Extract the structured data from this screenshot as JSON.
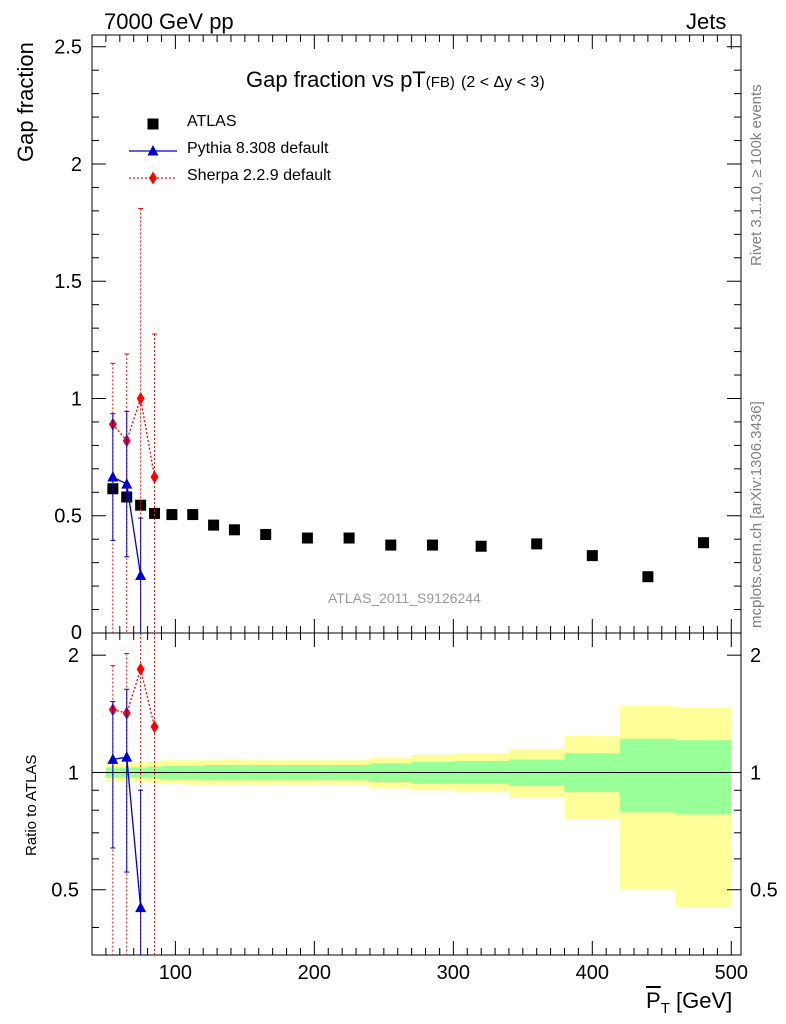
{
  "header": {
    "left": "7000 GeV pp",
    "right": "Jets"
  },
  "side_labels": {
    "rivet": "Rivet 3.1.10, ≥ 100k events",
    "mcplots": "mcplots.cern.ch [arXiv:1306.3436]"
  },
  "chart_data": [
    {
      "type": "scatter",
      "title": "Gap fraction vs pT(FB) (2 < Δy < 3)",
      "title_main": "Gap fraction vs pT",
      "title_sub": "(FB)",
      "title_tail": "(2 < Δy < 3)",
      "watermark": "ATLAS_2011_S9126244",
      "ylabel": "Gap fraction",
      "xlim": [
        40,
        507
      ],
      "ylim": [
        0,
        2.55
      ],
      "yticks": [
        0.5,
        1,
        1.5,
        2,
        2.5
      ],
      "yticklabels": [
        "0.5",
        "1",
        "1.5",
        "2",
        "2.5"
      ],
      "y_zero_label": "0",
      "legend_placement": "top-left",
      "series": [
        {
          "name": "ATLAS",
          "marker": "square",
          "color": "#000000",
          "x": [
            55,
            65,
            75,
            85,
            97.5,
            112.5,
            127.5,
            142.5,
            165,
            195,
            225,
            255,
            285,
            320,
            360,
            400,
            440,
            480
          ],
          "y": [
            0.615,
            0.58,
            0.545,
            0.51,
            0.505,
            0.505,
            0.46,
            0.44,
            0.42,
            0.405,
            0.405,
            0.375,
            0.375,
            0.37,
            0.38,
            0.33,
            0.24,
            0.385
          ]
        },
        {
          "name": "Pythia 8.308 default",
          "marker": "triangle",
          "line": "solid",
          "color": "#0000cc",
          "x": [
            55,
            65,
            75
          ],
          "y": [
            0.665,
            0.635,
            0.245
          ],
          "yerr_low": [
            0.27,
            0.31,
            0.245
          ],
          "yerr_high": [
            0.27,
            0.31,
            0.245
          ]
        },
        {
          "name": "Sherpa 2.2.9 default",
          "marker": "diamond",
          "line": "dotted",
          "color": "#ff0000",
          "x": [
            55,
            65,
            75,
            85
          ],
          "y": [
            0.89,
            0.82,
            1.0,
            0.665
          ],
          "yerr_low": [
            0.89,
            0.82,
            1.0,
            0.665
          ],
          "yerr_high": [
            0.26,
            0.37,
            0.81,
            0.61
          ]
        }
      ]
    },
    {
      "type": "scatter",
      "ylabel": "Ratio to ATLAS",
      "xlabel": "P_T [GeV]",
      "xlabel_main": "P",
      "xlabel_sub": "T",
      "xlabel_unit": "[GeV]",
      "xlim": [
        40,
        507
      ],
      "ylim": [
        0.34,
        2.28
      ],
      "xticks": [
        100,
        200,
        300,
        400,
        500
      ],
      "xticklabels": [
        "100",
        "200",
        "300",
        "400",
        "500"
      ],
      "yticks": [
        0.5,
        1,
        2
      ],
      "yticklabels": [
        "0.5",
        "1",
        "2"
      ],
      "bands": {
        "bin_edges": [
          50,
          60,
          70,
          80,
          90,
          105,
          120,
          135,
          150,
          180,
          210,
          240,
          270,
          300,
          340,
          380,
          420,
          460,
          500
        ],
        "green_low": [
          0.97,
          0.97,
          0.97,
          0.965,
          0.96,
          0.96,
          0.955,
          0.955,
          0.955,
          0.955,
          0.955,
          0.945,
          0.935,
          0.935,
          0.925,
          0.89,
          0.79,
          0.78
        ],
        "green_high": [
          1.03,
          1.03,
          1.03,
          1.035,
          1.04,
          1.04,
          1.045,
          1.045,
          1.045,
          1.045,
          1.045,
          1.055,
          1.065,
          1.07,
          1.08,
          1.12,
          1.22,
          1.21
        ],
        "yellow_low": [
          0.95,
          0.95,
          0.95,
          0.94,
          0.935,
          0.93,
          0.93,
          0.93,
          0.93,
          0.93,
          0.93,
          0.91,
          0.9,
          0.89,
          0.86,
          0.76,
          0.5,
          0.45
        ],
        "yellow_high": [
          1.06,
          1.06,
          1.06,
          1.07,
          1.075,
          1.075,
          1.075,
          1.08,
          1.075,
          1.075,
          1.075,
          1.09,
          1.11,
          1.12,
          1.15,
          1.24,
          1.48,
          1.47
        ],
        "green_color": "#99ff99",
        "yellow_color": "#ffff99"
      },
      "series": [
        {
          "name": "Pythia 8.308 default",
          "marker": "triangle",
          "line": "solid",
          "color": "#0000cc",
          "x": [
            55,
            65,
            75
          ],
          "y": [
            1.08,
            1.095,
            0.45
          ],
          "yerr_low": [
            0.44,
            0.54,
            0.45
          ],
          "yerr_high": [
            0.44,
            0.54,
            0.45
          ]
        },
        {
          "name": "Sherpa 2.2.9 default",
          "marker": "diamond",
          "line": "dotted",
          "color": "#ff0000",
          "x": [
            55,
            65,
            75,
            85
          ],
          "y": [
            1.45,
            1.42,
            1.84,
            1.31
          ],
          "yerr_low": [
            1.45,
            1.42,
            1.84,
            1.31
          ],
          "yerr_high": [
            0.43,
            0.6,
            1.5,
            1.2
          ]
        }
      ]
    }
  ]
}
